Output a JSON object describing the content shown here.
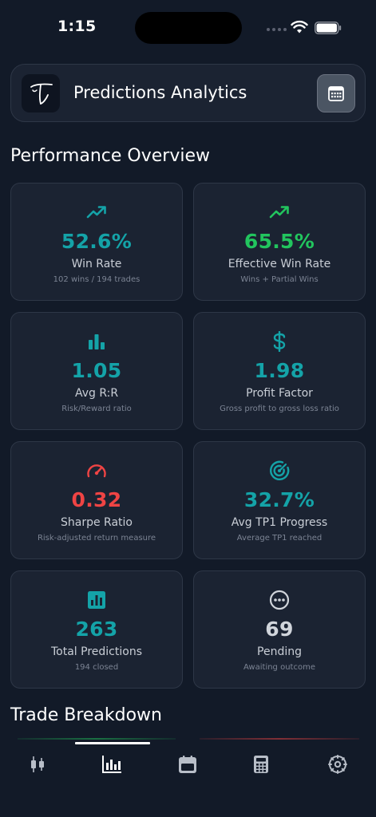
{
  "status_bar": {
    "time": "1:15"
  },
  "header": {
    "title": "Predictions Analytics"
  },
  "sections": {
    "performance_title": "Performance Overview",
    "trade_title": "Trade Breakdown"
  },
  "metrics": [
    {
      "value": "52.6%",
      "label": "Win Rate",
      "sub": "102 wins / 194 trades",
      "color": "#14a3a8",
      "icon": "trending-up-icon"
    },
    {
      "value": "65.5%",
      "label": "Effective Win Rate",
      "sub": "Wins + Partial Wins",
      "color": "#22c55e",
      "icon": "trending-up-icon"
    },
    {
      "value": "1.05",
      "label": "Avg R:R",
      "sub": "Risk/Reward ratio",
      "color": "#14a3a8",
      "icon": "bar-chart-icon"
    },
    {
      "value": "1.98",
      "label": "Profit Factor",
      "sub": "Gross profit to gross loss ratio",
      "color": "#14a3a8",
      "icon": "dollar-icon"
    },
    {
      "value": "0.32",
      "label": "Sharpe Ratio",
      "sub": "Risk-adjusted return measure",
      "color": "#ef4444",
      "icon": "speedometer-icon"
    },
    {
      "value": "32.7%",
      "label": "Avg TP1 Progress",
      "sub": "Average TP1 reached",
      "color": "#14a3a8",
      "icon": "target-icon"
    },
    {
      "value": "263",
      "label": "Total Predictions",
      "sub": "194 closed",
      "color": "#14a3a8",
      "icon": "analytics-box-icon"
    },
    {
      "value": "69",
      "label": "Pending",
      "sub": "Awaiting outcome",
      "color": "#d1d5db",
      "icon": "more-circle-icon"
    }
  ],
  "tabs": [
    {
      "icon": "candlestick-icon",
      "active": false
    },
    {
      "icon": "bar-chart-tab-icon",
      "active": true
    },
    {
      "icon": "calendar-tab-icon",
      "active": false
    },
    {
      "icon": "calculator-icon",
      "active": false
    },
    {
      "icon": "settings-icon",
      "active": false
    }
  ]
}
